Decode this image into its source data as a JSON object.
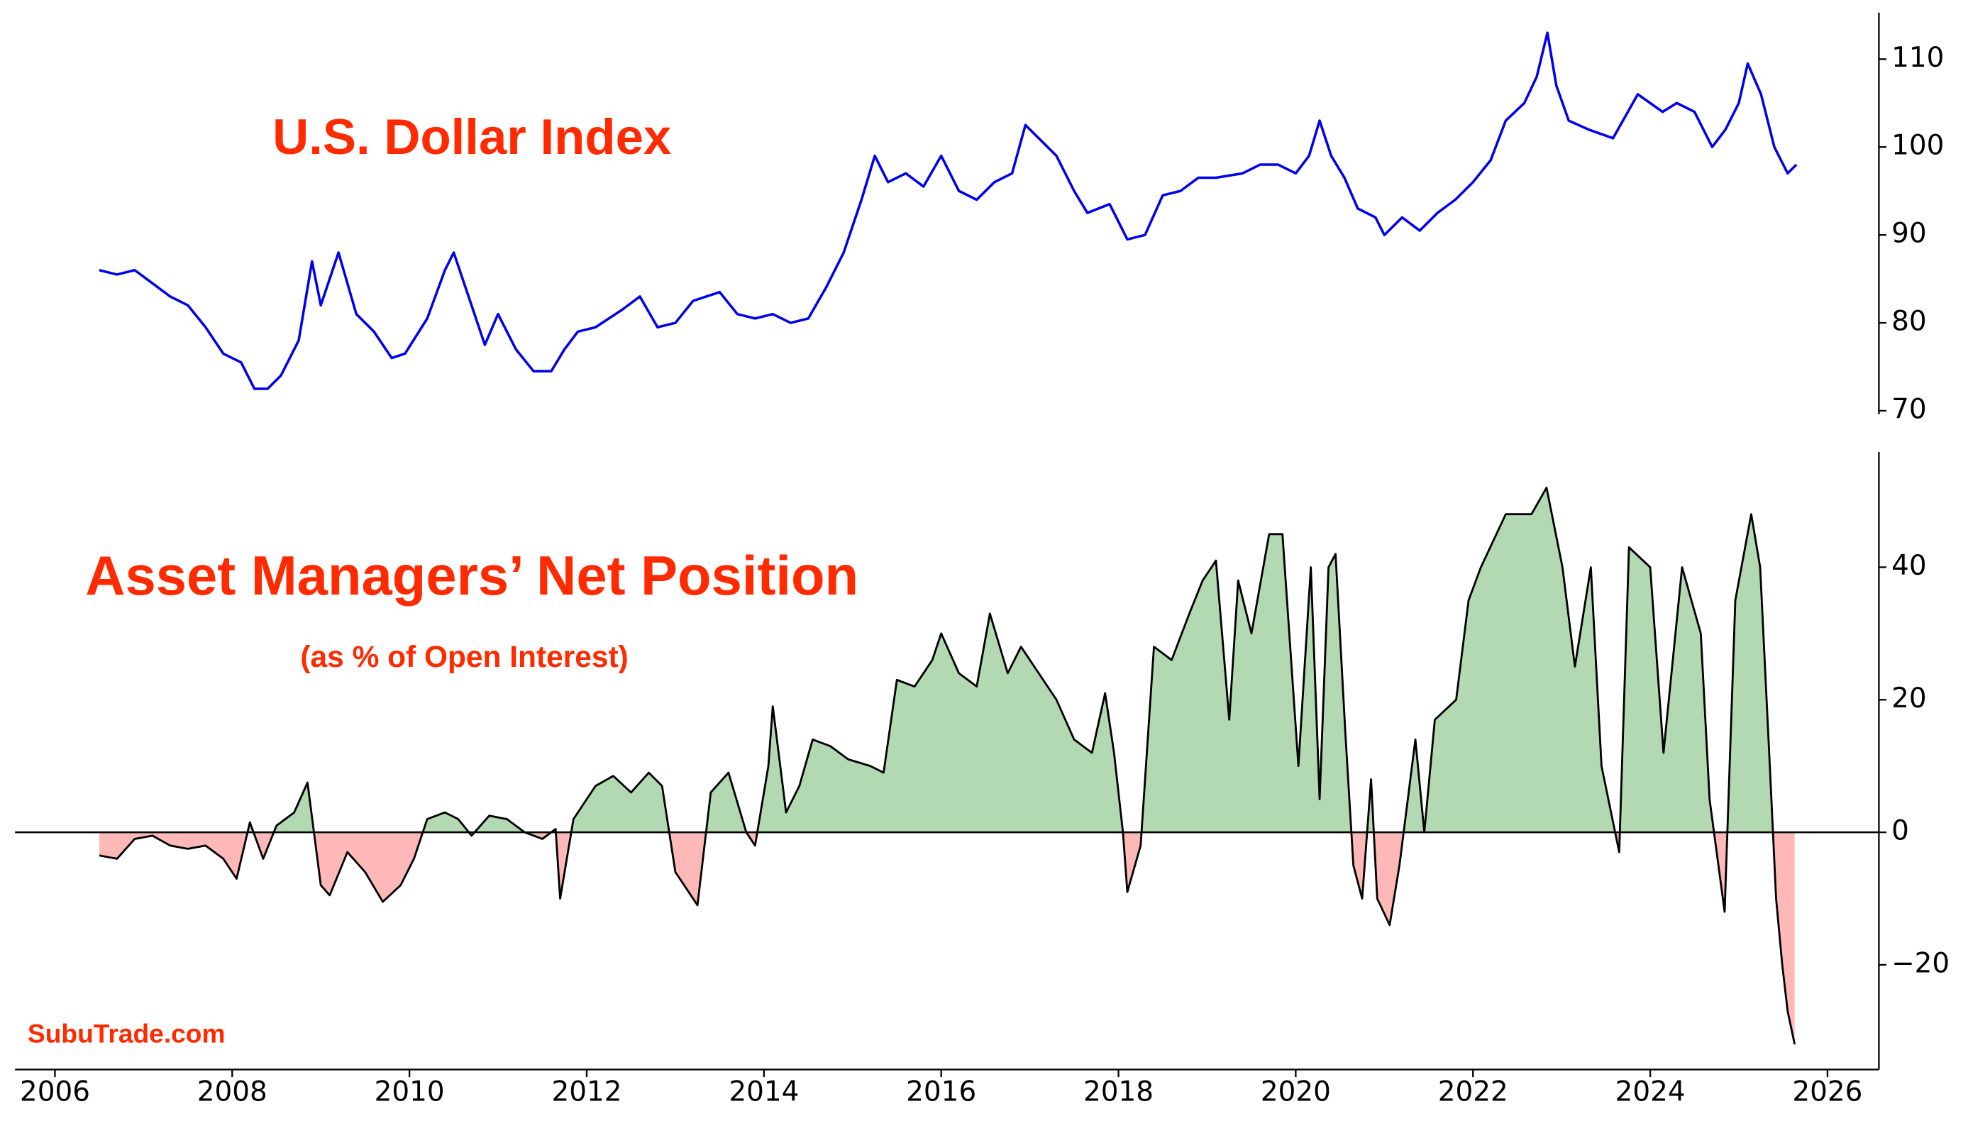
{
  "chart_data": [
    {
      "type": "line",
      "title": "U.S. Dollar Index",
      "color": "#0000ee",
      "x": [
        2006.5,
        2006.7,
        2006.9,
        2007.1,
        2007.3,
        2007.5,
        2007.7,
        2007.9,
        2008.1,
        2008.25,
        2008.4,
        2008.55,
        2008.75,
        2008.9,
        2009.0,
        2009.2,
        2009.4,
        2009.6,
        2009.8,
        2009.95,
        2010.2,
        2010.4,
        2010.5,
        2010.7,
        2010.85,
        2011.0,
        2011.2,
        2011.4,
        2011.6,
        2011.75,
        2011.9,
        2012.1,
        2012.4,
        2012.6,
        2012.8,
        2013.0,
        2013.2,
        2013.5,
        2013.7,
        2013.9,
        2014.1,
        2014.3,
        2014.5,
        2014.7,
        2014.9,
        2015.1,
        2015.25,
        2015.4,
        2015.6,
        2015.8,
        2016.0,
        2016.2,
        2016.4,
        2016.6,
        2016.8,
        2016.95,
        2017.1,
        2017.3,
        2017.5,
        2017.65,
        2017.9,
        2018.1,
        2018.3,
        2018.5,
        2018.7,
        2018.9,
        2019.1,
        2019.4,
        2019.6,
        2019.8,
        2020.0,
        2020.15,
        2020.27,
        2020.4,
        2020.55,
        2020.7,
        2020.9,
        2021.0,
        2021.2,
        2021.4,
        2021.6,
        2021.8,
        2022.0,
        2022.2,
        2022.37,
        2022.58,
        2022.72,
        2022.84,
        2022.94,
        2023.08,
        2023.3,
        2023.58,
        2023.86,
        2024.14,
        2024.3,
        2024.5,
        2024.7,
        2024.85,
        2025.0,
        2025.1,
        2025.25,
        2025.4,
        2025.55,
        2025.65
      ],
      "values": [
        86,
        85.5,
        86,
        84.5,
        83,
        82,
        79.5,
        76.5,
        75.5,
        72.5,
        72.5,
        74,
        78,
        87,
        82,
        88,
        81,
        79,
        76,
        76.5,
        80.5,
        86,
        88,
        82,
        77.5,
        81,
        77,
        74.5,
        74.5,
        77,
        79,
        79.5,
        81.5,
        83,
        79.5,
        80,
        82.5,
        83.5,
        81,
        80.5,
        81,
        80,
        80.5,
        84,
        88,
        94,
        99,
        96,
        97,
        95.5,
        99,
        95,
        94,
        96,
        97,
        102.5,
        101,
        99,
        95,
        92.5,
        93.5,
        89.5,
        90,
        94.5,
        95,
        96.5,
        96.5,
        97,
        98,
        98,
        97,
        99,
        103,
        99,
        96.5,
        93,
        92,
        90,
        92,
        90.5,
        92.5,
        94,
        96,
        98.5,
        103,
        105,
        108,
        113,
        107,
        103,
        102,
        101,
        106,
        104,
        105,
        104,
        100,
        102,
        105,
        109.5,
        106,
        100,
        97,
        98
      ],
      "xlim": [
        2005.55,
        2026.58
      ],
      "ylim": [
        69.6,
        115.3
      ],
      "yticks": [
        70,
        80,
        90,
        100,
        110
      ]
    },
    {
      "type": "area",
      "title": "Asset Managers’ Net Position",
      "subtitle": "(as % of Open Interest)",
      "annotation": "SubuTrade.com",
      "color": "#000000",
      "fill_positive_color": "#b3d9b3",
      "fill_negative_color": "#ffb8b8",
      "hline": 0,
      "x": [
        2006.5,
        2006.7,
        2006.9,
        2007.1,
        2007.3,
        2007.5,
        2007.7,
        2007.9,
        2008.05,
        2008.2,
        2008.35,
        2008.5,
        2008.7,
        2008.85,
        2009.0,
        2009.1,
        2009.3,
        2009.5,
        2009.7,
        2009.9,
        2010.05,
        2010.2,
        2010.4,
        2010.55,
        2010.7,
        2010.9,
        2011.1,
        2011.3,
        2011.5,
        2011.65,
        2011.7,
        2011.85,
        2012.1,
        2012.3,
        2012.5,
        2012.7,
        2012.85,
        2013.0,
        2013.1,
        2013.25,
        2013.4,
        2013.6,
        2013.8,
        2013.9,
        2014.05,
        2014.1,
        2014.25,
        2014.4,
        2014.55,
        2014.75,
        2014.95,
        2015.2,
        2015.35,
        2015.5,
        2015.7,
        2015.9,
        2016.0,
        2016.2,
        2016.4,
        2016.55,
        2016.75,
        2016.9,
        2017.1,
        2017.3,
        2017.5,
        2017.7,
        2017.85,
        2017.95,
        2018.05,
        2018.1,
        2018.25,
        2018.4,
        2018.6,
        2018.8,
        2018.95,
        2019.1,
        2019.25,
        2019.35,
        2019.5,
        2019.7,
        2019.85,
        2020.03,
        2020.17,
        2020.27,
        2020.37,
        2020.45,
        2020.56,
        2020.65,
        2020.75,
        2020.85,
        2020.92,
        2021.06,
        2021.17,
        2021.35,
        2021.45,
        2021.57,
        2021.81,
        2021.95,
        2022.09,
        2022.37,
        2022.66,
        2022.83,
        2023.01,
        2023.15,
        2023.33,
        2023.45,
        2023.65,
        2023.76,
        2024.0,
        2024.15,
        2024.36,
        2024.57,
        2024.67,
        2024.84,
        2024.96,
        2025.14,
        2025.24,
        2025.35,
        2025.42,
        2025.49,
        2025.55,
        2025.63
      ],
      "values": [
        -3.5,
        -4,
        -1,
        -0.5,
        -2,
        -2.5,
        -2,
        -4,
        -7,
        1.5,
        -4,
        1,
        3,
        7.5,
        -8,
        -9.5,
        -3,
        -6,
        -10.5,
        -8,
        -4,
        2,
        3,
        2,
        -0.5,
        2.5,
        2,
        0,
        -1,
        0.5,
        -10,
        2,
        7,
        8.5,
        6,
        9,
        7,
        -6,
        -8,
        -11,
        6,
        9,
        0,
        -2,
        10,
        19,
        3,
        7,
        14,
        13,
        11,
        10,
        9,
        23,
        22,
        26,
        30,
        24,
        22,
        33,
        24,
        28,
        24,
        20,
        14,
        12,
        21,
        12,
        0,
        -9,
        -2,
        28,
        26,
        33,
        38,
        41,
        17,
        38,
        30,
        45,
        45,
        10,
        40,
        5,
        40,
        42,
        15,
        -5,
        -10,
        8,
        -10,
        -14,
        -5,
        14,
        0,
        17,
        20,
        35,
        40,
        48,
        48,
        52,
        40,
        25,
        40,
        10,
        -3,
        43,
        40,
        12,
        40,
        30,
        5,
        -12,
        35,
        48,
        40,
        10,
        -10,
        -20,
        -27,
        -32
      ],
      "xlim": [
        2005.55,
        2026.58
      ],
      "ylim": [
        -35.8,
        57.4
      ],
      "xticks": [
        2006,
        2008,
        2010,
        2012,
        2014,
        2016,
        2018,
        2020,
        2022,
        2024,
        2026
      ],
      "yticks": [
        {
          "value": -20,
          "label": "−20"
        },
        0,
        20,
        40
      ]
    }
  ]
}
